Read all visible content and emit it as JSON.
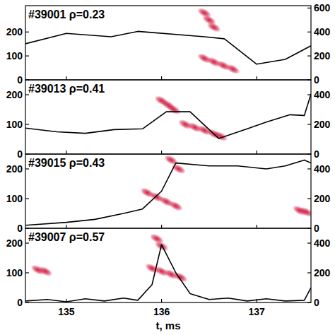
{
  "chart_data": [
    {
      "type": "line",
      "title": "#39001 ρ=0.23",
      "tick_labels": "y",
      "xlim": [
        134.57,
        137.57
      ],
      "xticks": [
        135,
        136,
        137
      ],
      "ylim": [
        0,
        310
      ],
      "yticks": [
        0,
        100,
        200
      ],
      "y2lim": [
        0,
        620
      ],
      "y2ticks": [
        0,
        200,
        400,
        600
      ],
      "series": [
        {
          "type": "scatter",
          "marker": "blob",
          "color": "#d0103a",
          "x": [
            136.45,
            136.55,
            136.65,
            136.75,
            136.45,
            136.5,
            136.55
          ],
          "values": [
            90,
            75,
            60,
            45,
            280,
            250,
            220
          ]
        },
        {
          "type": "line",
          "axis": "y2",
          "color": "#000000",
          "x": [
            134.57,
            135.0,
            135.47,
            135.75,
            136.45,
            136.66,
            137.0,
            137.3,
            137.57
          ],
          "values": [
            302,
            388,
            360,
            405,
            360,
            343,
            131,
            171,
            285
          ]
        }
      ]
    },
    {
      "type": "line",
      "title": "#39013 ρ=0.41",
      "tick_labels": "y",
      "xlim": [
        134.57,
        137.57
      ],
      "xticks": [
        135,
        136,
        137
      ],
      "ylim": [
        0,
        250
      ],
      "yticks": [
        0,
        100,
        200
      ],
      "y2lim": [
        0,
        500
      ],
      "y2ticks": [
        0,
        200,
        400
      ],
      "series": [
        {
          "type": "scatter",
          "marker": "blob",
          "color": "#d0103a",
          "x": [
            136.25,
            136.35,
            136.45,
            136.55,
            136.62,
            136.0,
            136.07,
            136.13
          ],
          "values": [
            100,
            90,
            80,
            68,
            60,
            180,
            165,
            150
          ]
        },
        {
          "type": "line",
          "axis": "y2",
          "color": "#000000",
          "x": [
            134.57,
            134.9,
            135.2,
            135.5,
            135.8,
            136.05,
            136.3,
            136.6,
            136.9,
            137.1,
            137.35,
            137.5,
            137.57
          ],
          "values": [
            175,
            150,
            140,
            165,
            170,
            285,
            285,
            105,
            170,
            215,
            265,
            260,
            405
          ]
        }
      ]
    },
    {
      "type": "line",
      "title": "#39015 ρ=0.43",
      "tick_labels": "y",
      "xlim": [
        134.57,
        137.57
      ],
      "xticks": [
        135,
        136,
        137
      ],
      "ylim": [
        0,
        250
      ],
      "yticks": [
        0,
        100,
        200
      ],
      "y2lim": [
        0,
        500
      ],
      "y2ticks": [
        0,
        200,
        400
      ],
      "series": [
        {
          "type": "scatter",
          "marker": "blob",
          "color": "#d0103a",
          "x": [
            135.85,
            135.95,
            136.05,
            136.15,
            136.1,
            136.18,
            137.45,
            137.52
          ],
          "values": [
            120,
            105,
            90,
            75,
            230,
            200,
            60,
            55
          ]
        },
        {
          "type": "line",
          "axis": "y2",
          "color": "#000000",
          "x": [
            134.57,
            135.0,
            135.3,
            135.6,
            135.8,
            136.0,
            136.15,
            136.5,
            136.8,
            137.1,
            137.3,
            137.5,
            137.57
          ],
          "values": [
            20,
            40,
            60,
            100,
            130,
            250,
            440,
            420,
            420,
            400,
            420,
            460,
            440
          ]
        }
      ]
    },
    {
      "type": "line",
      "title": "#39007 ρ=0.57",
      "xlabel": "t, ms",
      "xlim": [
        134.57,
        137.57
      ],
      "xticks": [
        135,
        136,
        137
      ],
      "ylim": [
        0,
        250
      ],
      "yticks": [
        0,
        100,
        200
      ],
      "y2lim": [
        0,
        500
      ],
      "y2ticks": [
        0,
        200,
        400
      ],
      "series": [
        {
          "type": "scatter",
          "marker": "blob",
          "color": "#d0103a",
          "x": [
            135.9,
            136.0,
            136.1,
            136.2,
            135.95,
            136.0,
            134.7,
            134.78
          ],
          "values": [
            115,
            105,
            95,
            85,
            215,
            190,
            110,
            105
          ]
        },
        {
          "type": "line",
          "axis": "y2",
          "color": "#000000",
          "x": [
            134.57,
            134.8,
            135.0,
            135.2,
            135.4,
            135.6,
            135.75,
            135.9,
            136.0,
            136.15,
            136.3,
            136.5,
            136.7,
            136.9,
            137.1,
            137.3,
            137.5,
            137.57
          ],
          "values": [
            10,
            20,
            5,
            25,
            10,
            30,
            15,
            120,
            390,
            200,
            60,
            20,
            30,
            10,
            25,
            10,
            15,
            100
          ]
        }
      ]
    }
  ]
}
